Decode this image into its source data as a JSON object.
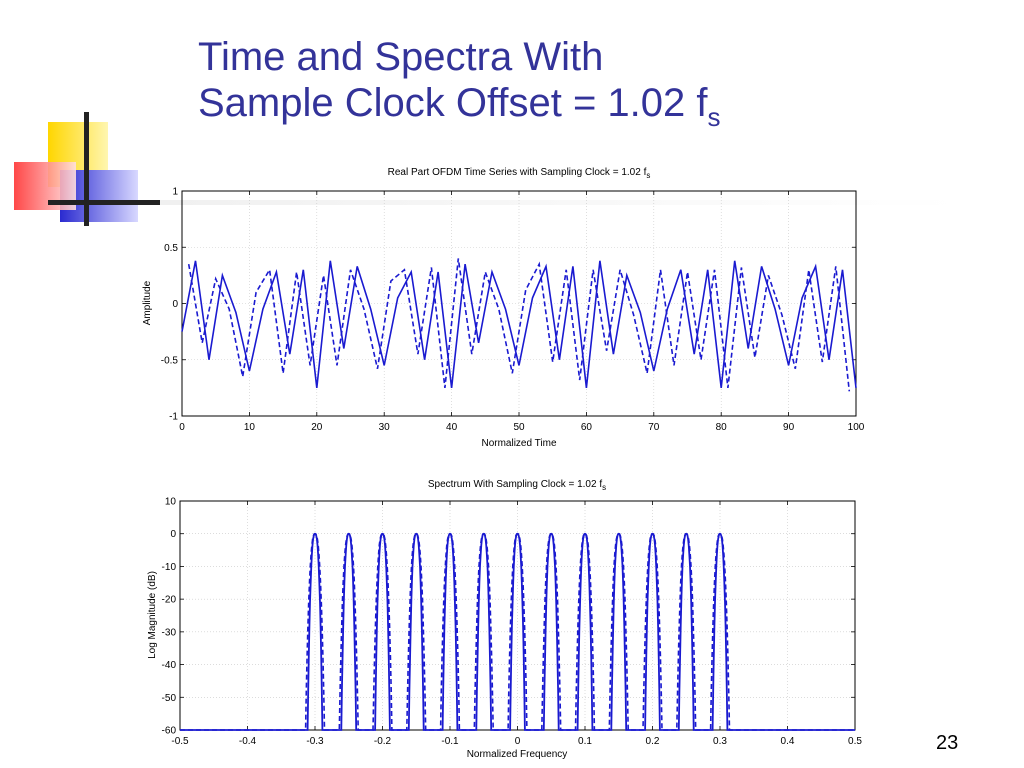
{
  "slide": {
    "title_line1": "Time and Spectra With",
    "title_line2_prefix": "Sample Clock Offset = 1.02 f",
    "title_line2_sub": "s",
    "page_number": "23"
  },
  "colors": {
    "title": "#333399",
    "series": "#1a1ad0",
    "deco_yellow": "#ffd600",
    "deco_red": "#ff3333",
    "deco_blue": "#3333cc"
  },
  "chart_data": [
    {
      "type": "line",
      "title": "Real Part OFDM Time Series with Sampling Clock = 1.02 f",
      "title_sub": "s",
      "xlabel": "Normalized Time",
      "ylabel": "Amplitude",
      "xlim": [
        0,
        100
      ],
      "ylim": [
        -1,
        1
      ],
      "xticks": [
        0,
        10,
        20,
        30,
        40,
        50,
        60,
        70,
        80,
        90,
        100
      ],
      "xtick_labels": [
        "0",
        "10",
        "20",
        "30",
        "40",
        "50",
        "60",
        "70",
        "80",
        "90",
        "100"
      ],
      "yticks": [
        1,
        0.5,
        0,
        -0.5,
        -1
      ],
      "ytick_labels": [
        "1",
        "0.5",
        "0",
        "-0.5",
        "-1"
      ],
      "grid": true,
      "series": [
        {
          "style": "solid",
          "x": [
            0,
            2,
            4,
            6,
            8,
            10,
            12,
            14,
            16,
            18,
            20,
            22,
            24,
            26,
            28,
            30,
            32,
            34,
            36,
            38,
            40,
            42,
            44,
            46,
            48,
            50,
            52,
            54,
            56,
            58,
            60,
            62,
            64,
            66,
            68,
            70,
            72,
            74,
            76,
            78,
            80,
            82,
            84,
            86,
            88,
            90,
            92,
            94,
            96,
            98,
            100
          ],
          "y": [
            -0.25,
            0.38,
            -0.5,
            0.25,
            -0.08,
            -0.6,
            -0.05,
            0.28,
            -0.45,
            0.3,
            -0.75,
            0.38,
            -0.4,
            0.33,
            -0.05,
            -0.55,
            0.05,
            0.28,
            -0.5,
            0.28,
            -0.75,
            0.35,
            -0.35,
            0.28,
            -0.05,
            -0.55,
            0.05,
            0.33,
            -0.5,
            0.33,
            -0.75,
            0.38,
            -0.45,
            0.25,
            -0.08,
            -0.6,
            -0.05,
            0.3,
            -0.45,
            0.3,
            -0.75,
            0.38,
            -0.4,
            0.33,
            -0.05,
            -0.55,
            0.05,
            0.33,
            -0.5,
            0.3,
            -0.75
          ]
        },
        {
          "style": "dashed",
          "x": [
            1,
            3,
            5,
            7,
            9,
            11,
            13,
            15,
            17,
            19,
            21,
            23,
            25,
            27,
            29,
            31,
            33,
            35,
            37,
            39,
            41,
            43,
            45,
            47,
            49,
            51,
            53,
            55,
            57,
            59,
            61,
            63,
            65,
            67,
            69,
            71,
            73,
            75,
            77,
            79,
            81,
            83,
            85,
            87,
            89,
            91,
            93,
            95,
            97,
            99
          ],
          "y": [
            0.35,
            -0.35,
            0.22,
            -0.05,
            -0.65,
            0.1,
            0.3,
            -0.62,
            0.28,
            -0.55,
            0.25,
            -0.55,
            0.3,
            -0.05,
            -0.58,
            0.2,
            0.3,
            -0.45,
            0.32,
            -0.75,
            0.4,
            -0.45,
            0.28,
            -0.05,
            -0.62,
            0.12,
            0.35,
            -0.52,
            0.3,
            -0.68,
            0.3,
            -0.42,
            0.3,
            -0.1,
            -0.62,
            0.3,
            -0.55,
            0.28,
            -0.5,
            0.3,
            -0.75,
            0.32,
            -0.48,
            0.25,
            -0.1,
            -0.58,
            0.3,
            -0.52,
            0.33,
            -0.78
          ]
        }
      ]
    },
    {
      "type": "line",
      "title": "Spectrum With Sampling Clock = 1.02 f",
      "title_sub": "s",
      "xlabel": "Normalized Frequency",
      "ylabel": "Log Magnitude (dB)",
      "xlim": [
        -0.5,
        0.5
      ],
      "ylim": [
        -60,
        10
      ],
      "xticks": [
        -0.5,
        -0.4,
        -0.3,
        -0.2,
        -0.1,
        0,
        0.1,
        0.2,
        0.3,
        0.4,
        0.5
      ],
      "xtick_labels": [
        "-0.5",
        "-0.4",
        "-0.3",
        "-0.2",
        "-0.1",
        "0",
        "0.1",
        "0.2",
        "0.3",
        "0.4",
        "0.5"
      ],
      "yticks": [
        10,
        0,
        -10,
        -20,
        -30,
        -40,
        -50,
        -60
      ],
      "ytick_labels": [
        "10",
        "0",
        "-10",
        "-20",
        "-30",
        "-40",
        "-50",
        "-60"
      ],
      "grid": true,
      "lobe_centers": [
        -0.3,
        -0.25,
        -0.2,
        -0.15,
        -0.1,
        -0.05,
        0,
        0.05,
        0.1,
        0.15,
        0.2,
        0.25,
        0.3
      ],
      "lobe_peak_db": 0,
      "lobe_half_width": 0.011,
      "dashed_lobe_half_width": 0.014,
      "floor_db": -60
    }
  ]
}
